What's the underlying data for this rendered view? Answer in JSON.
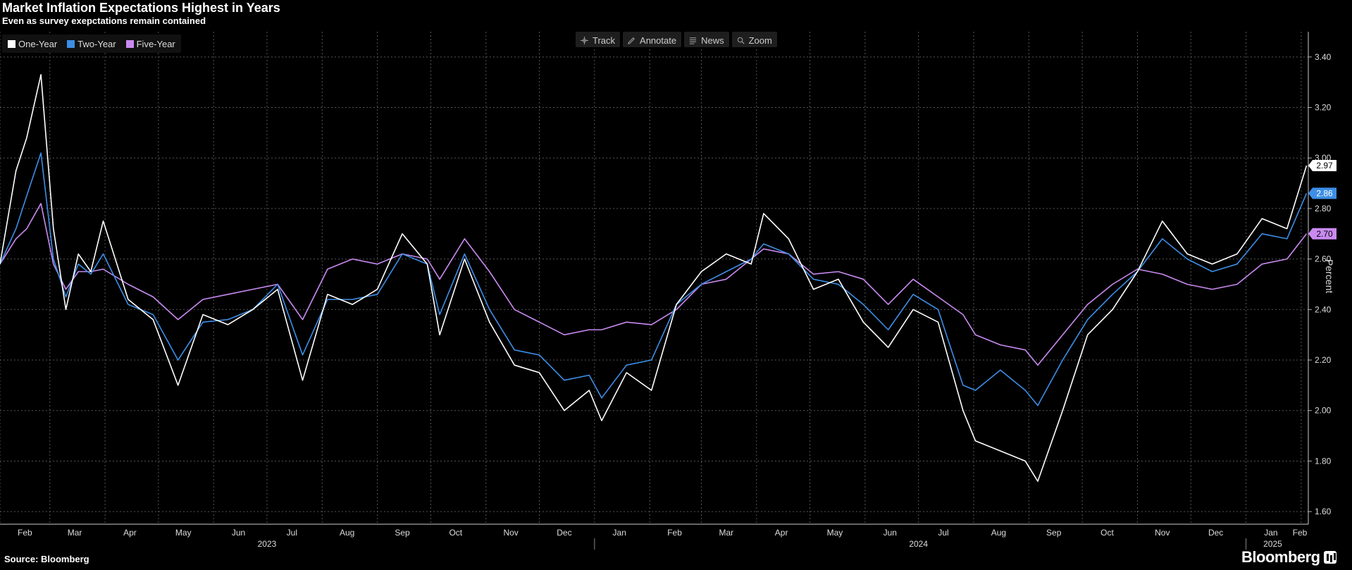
{
  "header": {
    "title": "Market Inflation Expectations Highest in Years",
    "subtitle": "Even as survey exepctations remain contained"
  },
  "toolbar": {
    "track": "Track",
    "annotate": "Annotate",
    "news": "News",
    "zoom": "Zoom"
  },
  "footer": {
    "source": "Source: Bloomberg",
    "brand": "Bloomberg"
  },
  "colors": {
    "one_year": "#ffffff",
    "two_year": "#3d8ee6",
    "five_year": "#c98af0",
    "grid": "#555555",
    "background": "#000000"
  },
  "chart_data": {
    "type": "line",
    "title": "Market Inflation Expectations Highest in Years",
    "subtitle": "Even as survey exepctations remain contained",
    "ylabel": "Percent",
    "xlabel": "",
    "ylim": [
      1.55,
      3.5
    ],
    "y_ticks": [
      "1.60",
      "1.80",
      "2.00",
      "2.20",
      "2.40",
      "2.60",
      "2.80",
      "3.00",
      "3.20",
      "3.40"
    ],
    "x_range": [
      "2023-02-01",
      "2025-02-05"
    ],
    "month_ticks": [
      "Feb",
      "Mar",
      "Apr",
      "May",
      "Jun",
      "Jul",
      "Aug",
      "Sep",
      "Oct",
      "Nov",
      "Dec",
      "Jan",
      "Feb",
      "Mar",
      "Apr",
      "May",
      "Jun",
      "Jul",
      "Aug",
      "Sep",
      "Oct",
      "Nov",
      "Dec",
      "Jan",
      "Feb"
    ],
    "year_labels": [
      "2023",
      "2024",
      "2025"
    ],
    "grid": true,
    "legend_position": "top-left",
    "last_value_labels": [
      "2.97",
      "2.86",
      "2.70"
    ],
    "x": [
      "2023-02-01",
      "2023-02-10",
      "2023-02-16",
      "2023-02-24",
      "2023-03-03",
      "2023-03-10",
      "2023-03-17",
      "2023-03-24",
      "2023-03-31",
      "2023-04-14",
      "2023-04-28",
      "2023-05-12",
      "2023-05-26",
      "2023-06-09",
      "2023-06-23",
      "2023-07-07",
      "2023-07-21",
      "2023-08-04",
      "2023-08-18",
      "2023-09-01",
      "2023-09-15",
      "2023-09-29",
      "2023-10-06",
      "2023-10-20",
      "2023-11-03",
      "2023-11-17",
      "2023-12-01",
      "2023-12-15",
      "2023-12-29",
      "2024-01-05",
      "2024-01-19",
      "2024-02-02",
      "2024-02-16",
      "2024-03-01",
      "2024-03-15",
      "2024-03-29",
      "2024-04-05",
      "2024-04-19",
      "2024-05-03",
      "2024-05-17",
      "2024-05-31",
      "2024-06-14",
      "2024-06-28",
      "2024-07-12",
      "2024-07-26",
      "2024-08-02",
      "2024-08-16",
      "2024-08-30",
      "2024-09-06",
      "2024-09-20",
      "2024-10-04",
      "2024-10-18",
      "2024-11-01",
      "2024-11-15",
      "2024-11-29",
      "2024-12-13",
      "2024-12-27",
      "2025-01-10",
      "2025-01-24",
      "2025-02-04"
    ],
    "series": [
      {
        "name": "One-Year",
        "values": [
          2.58,
          2.95,
          3.08,
          3.33,
          2.72,
          2.4,
          2.62,
          2.55,
          2.75,
          2.44,
          2.36,
          2.1,
          2.38,
          2.34,
          2.4,
          2.48,
          2.12,
          2.46,
          2.42,
          2.48,
          2.7,
          2.58,
          2.3,
          2.6,
          2.35,
          2.18,
          2.15,
          2.0,
          2.08,
          1.96,
          2.15,
          2.08,
          2.42,
          2.55,
          2.62,
          2.58,
          2.78,
          2.68,
          2.48,
          2.52,
          2.35,
          2.25,
          2.4,
          2.35,
          2.0,
          1.88,
          1.84,
          1.8,
          1.72,
          2.0,
          2.3,
          2.4,
          2.55,
          2.75,
          2.62,
          2.58,
          2.62,
          2.76,
          2.72,
          2.97
        ]
      },
      {
        "name": "Two-Year",
        "values": [
          2.58,
          2.72,
          2.85,
          3.02,
          2.6,
          2.45,
          2.58,
          2.54,
          2.62,
          2.42,
          2.38,
          2.2,
          2.35,
          2.36,
          2.4,
          2.5,
          2.22,
          2.44,
          2.44,
          2.46,
          2.62,
          2.58,
          2.38,
          2.62,
          2.4,
          2.24,
          2.22,
          2.12,
          2.14,
          2.05,
          2.18,
          2.2,
          2.42,
          2.5,
          2.55,
          2.6,
          2.66,
          2.62,
          2.52,
          2.5,
          2.42,
          2.32,
          2.46,
          2.4,
          2.1,
          2.08,
          2.16,
          2.08,
          2.02,
          2.2,
          2.36,
          2.46,
          2.55,
          2.68,
          2.6,
          2.55,
          2.58,
          2.7,
          2.68,
          2.86
        ]
      },
      {
        "name": "Five-Year",
        "values": [
          2.58,
          2.68,
          2.72,
          2.82,
          2.58,
          2.48,
          2.55,
          2.55,
          2.56,
          2.5,
          2.45,
          2.36,
          2.44,
          2.46,
          2.48,
          2.5,
          2.36,
          2.56,
          2.6,
          2.58,
          2.62,
          2.6,
          2.52,
          2.68,
          2.55,
          2.4,
          2.35,
          2.3,
          2.32,
          2.32,
          2.35,
          2.34,
          2.4,
          2.5,
          2.52,
          2.6,
          2.64,
          2.62,
          2.54,
          2.55,
          2.52,
          2.42,
          2.52,
          2.45,
          2.38,
          2.3,
          2.26,
          2.24,
          2.18,
          2.3,
          2.42,
          2.5,
          2.56,
          2.54,
          2.5,
          2.48,
          2.5,
          2.58,
          2.6,
          2.7
        ]
      }
    ]
  }
}
